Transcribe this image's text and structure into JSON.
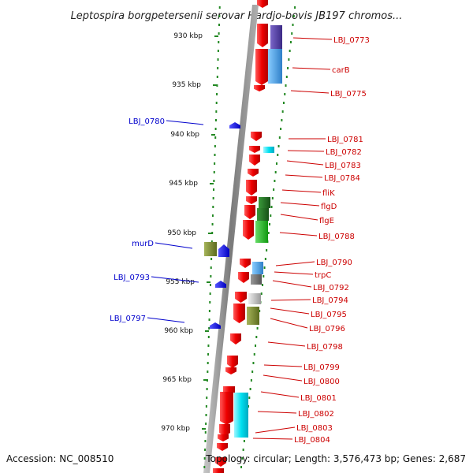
{
  "header": {
    "title": "Leptospira borgpetersenii serovar Hardjo-bovis JB197 chromos..."
  },
  "footer": {
    "accession": "Accession: NC_008510",
    "topology": "Topology: circular; Length: 3,576,473 bp; Genes: 2,687"
  },
  "axis": {
    "ticks": [
      {
        "label": "930 kbp"
      },
      {
        "label": "935 kbp"
      },
      {
        "label": "940 kbp"
      },
      {
        "label": "945 kbp"
      },
      {
        "label": "950 kbp"
      },
      {
        "label": "955 kbp"
      },
      {
        "label": "960 kbp"
      },
      {
        "label": "965 kbp"
      },
      {
        "label": "970 kbp"
      }
    ]
  },
  "genes_right": [
    {
      "label": "LBJ_0773"
    },
    {
      "label": "carB"
    },
    {
      "label": "LBJ_0775"
    },
    {
      "label": "LBJ_0781"
    },
    {
      "label": "LBJ_0782"
    },
    {
      "label": "LBJ_0783"
    },
    {
      "label": "LBJ_0784"
    },
    {
      "label": "fliK"
    },
    {
      "label": "flgD"
    },
    {
      "label": "flgE"
    },
    {
      "label": "LBJ_0788"
    },
    {
      "label": "LBJ_0790"
    },
    {
      "label": "trpC"
    },
    {
      "label": "LBJ_0792"
    },
    {
      "label": "LBJ_0794"
    },
    {
      "label": "LBJ_0795"
    },
    {
      "label": "LBJ_0796"
    },
    {
      "label": "LBJ_0798"
    },
    {
      "label": "LBJ_0799"
    },
    {
      "label": "LBJ_0800"
    },
    {
      "label": "LBJ_0801"
    },
    {
      "label": "LBJ_0802"
    },
    {
      "label": "LBJ_0803"
    },
    {
      "label": "LBJ_0804"
    }
  ],
  "genes_left": [
    {
      "label": "LBJ_0780"
    },
    {
      "label": "murD"
    },
    {
      "label": "LBJ_0793"
    },
    {
      "label": "LBJ_0797"
    }
  ],
  "colors": {
    "forward_gene": "#ee0000",
    "reverse_gene": "#0000ee",
    "backbone": "#888888",
    "right_label": "#cc0000",
    "left_label": "#0000cc",
    "dots": "#228822"
  }
}
